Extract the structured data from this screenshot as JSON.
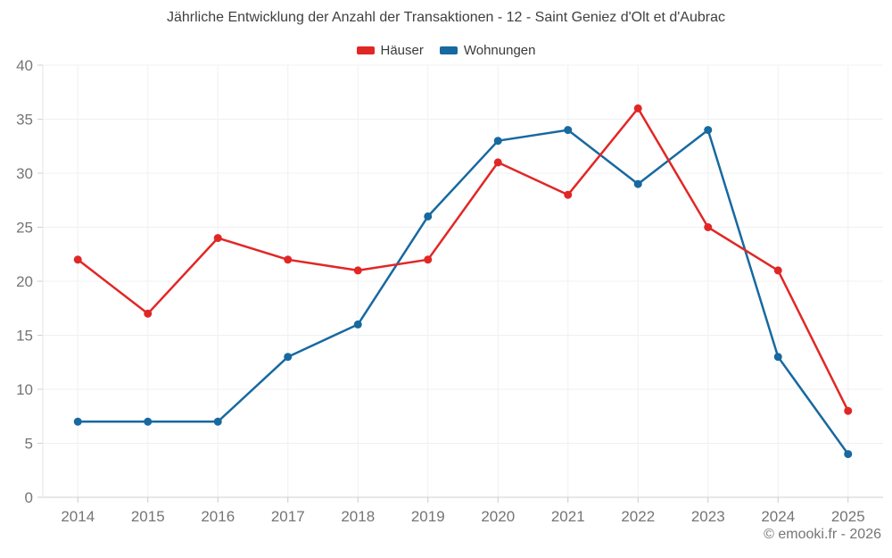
{
  "page": {
    "footer": "© emooki.fr - 2026"
  },
  "chart_data": {
    "type": "line",
    "title": "Jährliche Entwicklung der Anzahl der Transaktionen - 12 - Saint Geniez d'Olt et d'Aubrac",
    "categories": [
      "2014",
      "2015",
      "2016",
      "2017",
      "2018",
      "2019",
      "2020",
      "2021",
      "2022",
      "2023",
      "2024",
      "2025"
    ],
    "series": [
      {
        "name": "Häuser",
        "color": "#e12726",
        "values": [
          22,
          17,
          24,
          22,
          21,
          22,
          31,
          28,
          36,
          25,
          21,
          8
        ]
      },
      {
        "name": "Wohnungen",
        "color": "#1769a0",
        "values": [
          7,
          7,
          7,
          13,
          16,
          26,
          33,
          34,
          29,
          34,
          13,
          4
        ]
      }
    ],
    "xlabel": "",
    "ylabel": "",
    "ylim": [
      0,
      40
    ],
    "ytick_step": 5,
    "grid": true,
    "legend_position": "top",
    "marker": "circle"
  }
}
